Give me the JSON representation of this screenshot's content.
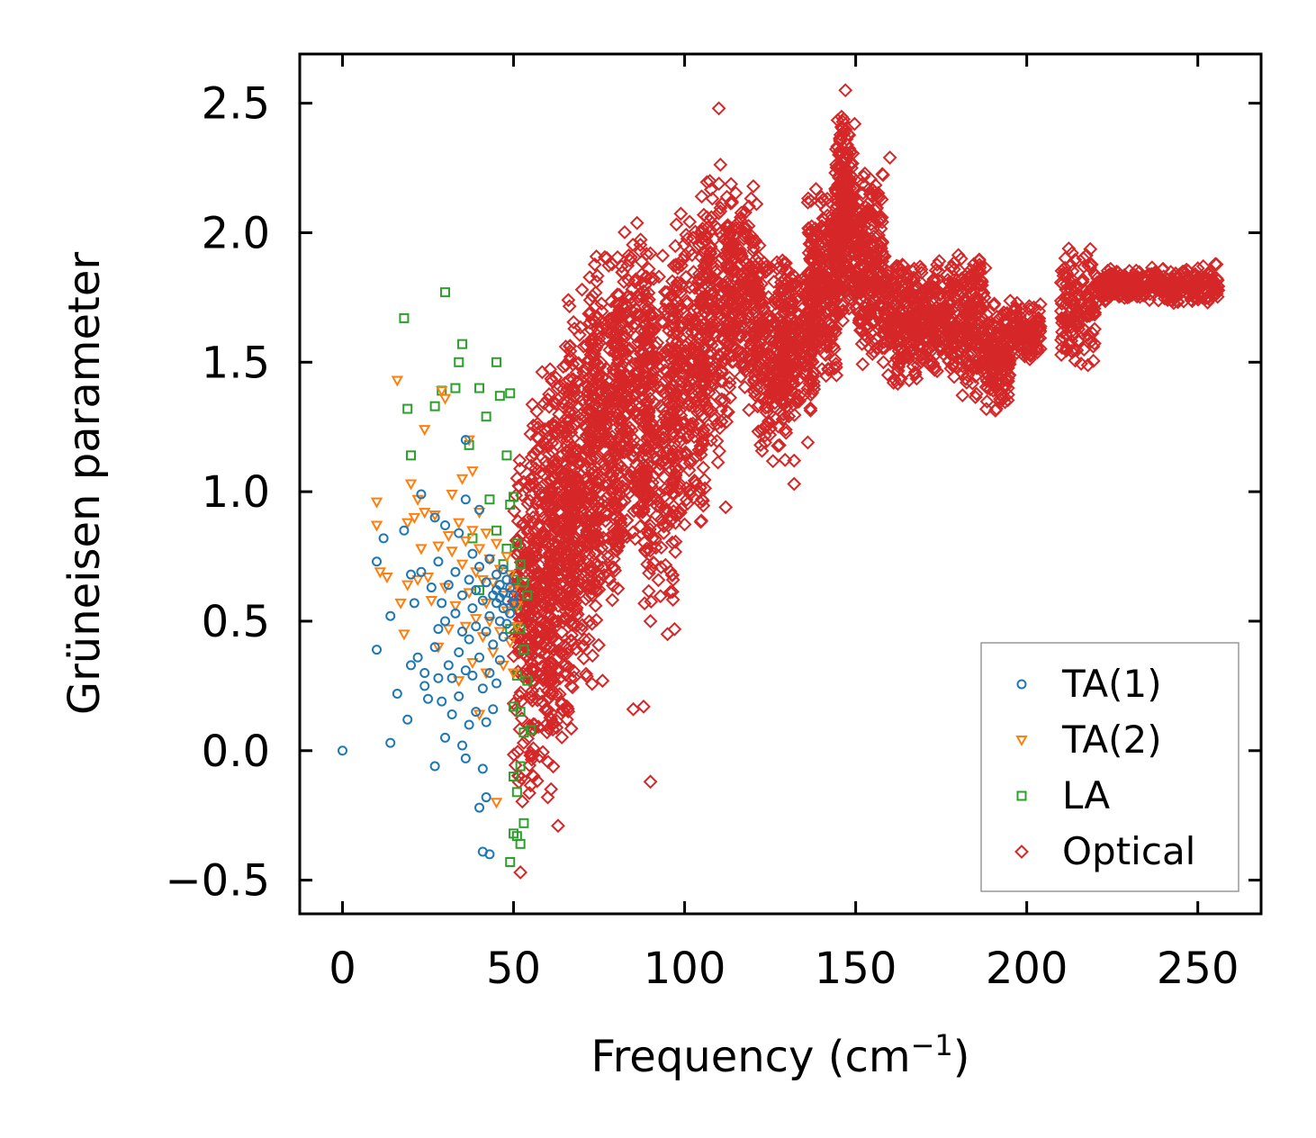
{
  "chart_data": {
    "type": "scatter",
    "title": "",
    "xlabel": "Frequency (cm",
    "xlabel_sup": "−1",
    "xlabel_suffix": ")",
    "ylabel": "Grüneisen parameter",
    "xlim": [
      -12.5,
      268.5
    ],
    "ylim": [
      -0.63,
      2.69
    ],
    "xticks": [
      0,
      50,
      100,
      150,
      200,
      250
    ],
    "xtick_labels": [
      "0",
      "50",
      "100",
      "150",
      "200",
      "250"
    ],
    "yticks": [
      -0.5,
      0.0,
      0.5,
      1.0,
      1.5,
      2.0,
      2.5
    ],
    "ytick_labels": [
      "−0.5",
      "0.0",
      "0.5",
      "1.0",
      "1.5",
      "2.0",
      "2.5"
    ],
    "legend_position": "lower-right",
    "series": [
      {
        "name": "TA(1)",
        "marker": "circle",
        "color": "#1f77b4",
        "points": [
          [
            0,
            0
          ],
          [
            10,
            0.73
          ],
          [
            10,
            0.39
          ],
          [
            12,
            0.82
          ],
          [
            14,
            0.52
          ],
          [
            14,
            0.03
          ],
          [
            16,
            0.22
          ],
          [
            18,
            0.85
          ],
          [
            19,
            0.12
          ],
          [
            20,
            0.68
          ],
          [
            20,
            0.33
          ],
          [
            21,
            0.57
          ],
          [
            22,
            0.36
          ],
          [
            23,
            0.99
          ],
          [
            23,
            0.69
          ],
          [
            24,
            0.3
          ],
          [
            24,
            0.25
          ],
          [
            25,
            0.2
          ],
          [
            26,
            0.63
          ],
          [
            27,
            0.9
          ],
          [
            27,
            0.4
          ],
          [
            27,
            -0.06
          ],
          [
            28,
            0.47
          ],
          [
            28,
            0.28
          ],
          [
            28,
            0.73
          ],
          [
            29,
            0.57
          ],
          [
            29,
            0.19
          ],
          [
            30,
            0.5
          ],
          [
            30,
            0.87
          ],
          [
            30,
            0.05
          ],
          [
            31,
            0.33
          ],
          [
            31,
            0.64
          ],
          [
            32,
            0.28
          ],
          [
            32,
            0.14
          ],
          [
            33,
            0.69
          ],
          [
            33,
            0.53
          ],
          [
            34,
            0.38
          ],
          [
            34,
            0.21
          ],
          [
            34,
            0.84
          ],
          [
            35,
            0.02
          ],
          [
            35,
            0.46
          ],
          [
            35,
            0.6
          ],
          [
            36,
            1.2
          ],
          [
            36,
            0.97
          ],
          [
            36,
            0.31
          ],
          [
            36,
            -0.03
          ],
          [
            37,
            0.66
          ],
          [
            37,
            0.43
          ],
          [
            37,
            0.1
          ],
          [
            38,
            0.76
          ],
          [
            38,
            0.55
          ],
          [
            38,
            0.29
          ],
          [
            39,
            0.15
          ],
          [
            39,
            0.48
          ],
          [
            39,
            0.62
          ],
          [
            40,
            0.93
          ],
          [
            40,
            0.71
          ],
          [
            40,
            0.36
          ],
          [
            40,
            -0.22
          ],
          [
            41,
            0.58
          ],
          [
            41,
            0.24
          ],
          [
            41,
            -0.07
          ],
          [
            41,
            -0.39
          ],
          [
            42,
            0.65
          ],
          [
            42,
            0.46
          ],
          [
            42,
            0.11
          ],
          [
            42,
            -0.18
          ],
          [
            43,
            0.74
          ],
          [
            43,
            0.52
          ],
          [
            43,
            0.3
          ],
          [
            43,
            -0.4
          ],
          [
            44,
            0.6
          ],
          [
            44,
            0.41
          ],
          [
            44,
            0.16
          ],
          [
            45,
            0.68
          ],
          [
            45,
            0.57
          ],
          [
            45,
            0.62
          ],
          [
            45,
            0.26
          ],
          [
            46,
            0.64
          ],
          [
            46,
            0.59
          ],
          [
            46,
            0.5
          ],
          [
            46,
            0.35
          ],
          [
            47,
            0.7
          ],
          [
            47,
            0.61
          ],
          [
            47,
            0.55
          ],
          [
            47,
            0.44
          ],
          [
            48,
            0.66
          ],
          [
            48,
            0.58
          ],
          [
            48,
            0.49
          ],
          [
            49,
            0.63
          ],
          [
            49,
            0.53
          ],
          [
            50,
            0.6
          ],
          [
            50,
            0.57
          ]
        ]
      },
      {
        "name": "TA(2)",
        "marker": "triangle-down",
        "color": "#ff7f0e",
        "points": [
          [
            10,
            0.96
          ],
          [
            10,
            0.87
          ],
          [
            11,
            0.69
          ],
          [
            13,
            0.67
          ],
          [
            16,
            1.43
          ],
          [
            17,
            0.57
          ],
          [
            18,
            0.45
          ],
          [
            19,
            0.88
          ],
          [
            19,
            0.64
          ],
          [
            20,
            1.03
          ],
          [
            21,
            0.9
          ],
          [
            22,
            0.97
          ],
          [
            22,
            0.66
          ],
          [
            23,
            0.78
          ],
          [
            24,
            1.24
          ],
          [
            24,
            0.92
          ],
          [
            25,
            0.67
          ],
          [
            26,
            0.58
          ],
          [
            27,
            0.91
          ],
          [
            28,
            0.79
          ],
          [
            28,
            0.4
          ],
          [
            29,
            1.39
          ],
          [
            30,
            1.36
          ],
          [
            30,
            0.63
          ],
          [
            31,
            0.83
          ],
          [
            31,
            0.47
          ],
          [
            32,
            0.99
          ],
          [
            32,
            0.77
          ],
          [
            33,
            0.56
          ],
          [
            34,
            0.88
          ],
          [
            34,
            0.27
          ],
          [
            35,
            1.05
          ],
          [
            35,
            0.72
          ],
          [
            36,
            0.81
          ],
          [
            36,
            0.48
          ],
          [
            37,
            1.2
          ],
          [
            37,
            0.61
          ],
          [
            38,
            1.08
          ],
          [
            38,
            0.85
          ],
          [
            38,
            0.34
          ],
          [
            39,
            0.69
          ],
          [
            39,
            0.51
          ],
          [
            40,
            0.92
          ],
          [
            40,
            0.78
          ],
          [
            40,
            0.14
          ],
          [
            41,
            0.66
          ],
          [
            41,
            0.44
          ],
          [
            42,
            0.84
          ],
          [
            42,
            0.57
          ],
          [
            42,
            0.3
          ],
          [
            43,
            0.74
          ],
          [
            43,
            0.5
          ],
          [
            44,
            0.65
          ],
          [
            44,
            0.38
          ],
          [
            45,
            0.8
          ],
          [
            45,
            -0.2
          ],
          [
            46,
            0.7
          ],
          [
            46,
            0.46
          ],
          [
            47,
            0.6
          ],
          [
            47,
            0.33
          ],
          [
            48,
            0.75
          ],
          [
            48,
            0.54
          ],
          [
            49,
            0.68
          ],
          [
            49,
            0.42
          ],
          [
            50,
            0.62
          ],
          [
            50,
            0.3
          ],
          [
            51,
            0.56
          ],
          [
            51,
            0.48
          ]
        ]
      },
      {
        "name": "LA",
        "marker": "square",
        "color": "#2ca02c",
        "points": [
          [
            18,
            1.67
          ],
          [
            19,
            1.32
          ],
          [
            20,
            1.14
          ],
          [
            27,
            1.33
          ],
          [
            29,
            1.39
          ],
          [
            30,
            1.77
          ],
          [
            33,
            1.4
          ],
          [
            34,
            1.5
          ],
          [
            35,
            1.57
          ],
          [
            37,
            1.18
          ],
          [
            38,
            0.82
          ],
          [
            40,
            1.4
          ],
          [
            40,
            0.62
          ],
          [
            42,
            1.29
          ],
          [
            43,
            0.97
          ],
          [
            45,
            1.5
          ],
          [
            45,
            0.85
          ],
          [
            46,
            1.37
          ],
          [
            47,
            0.72
          ],
          [
            48,
            1.14
          ],
          [
            48,
            0.78
          ],
          [
            49,
            1.38
          ],
          [
            49,
            0.95
          ],
          [
            49,
            0.47
          ],
          [
            50,
            0.98
          ],
          [
            50,
            0.66
          ],
          [
            50,
            0.17
          ],
          [
            50,
            -0.1
          ],
          [
            51,
            0.8
          ],
          [
            51,
            0.56
          ],
          [
            51,
            0.29
          ],
          [
            51,
            -0.33
          ],
          [
            52,
            0.72
          ],
          [
            52,
            0.47
          ],
          [
            52,
            0.15
          ],
          [
            52,
            -0.36
          ],
          [
            53,
            0.65
          ],
          [
            53,
            0.39
          ],
          [
            53,
            0.07
          ],
          [
            53,
            -0.28
          ],
          [
            54,
            0.6
          ],
          [
            54,
            0.27
          ],
          [
            55,
            0.08
          ],
          [
            49,
            -0.43
          ],
          [
            50,
            -0.32
          ],
          [
            51,
            -0.16
          ],
          [
            52,
            -0.06
          ]
        ]
      },
      {
        "name": "Optical",
        "marker": "diamond",
        "color": "#d62728",
        "clusters": [
          {
            "x": [
              50,
              56
            ],
            "y": [
              -0.3,
              1.4
            ],
            "n": 150
          },
          {
            "x": [
              55,
              62
            ],
            "y": [
              -0.2,
              1.5
            ],
            "n": 250
          },
          {
            "x": [
              60,
              68
            ],
            "y": [
              0.0,
              1.6
            ],
            "n": 280
          },
          {
            "x": [
              65,
              75
            ],
            "y": [
              0.2,
              1.75
            ],
            "n": 300
          },
          {
            "x": [
              72,
              82
            ],
            "y": [
              0.5,
              2.0
            ],
            "n": 300
          },
          {
            "x": [
              80,
              90
            ],
            "y": [
              0.7,
              2.1
            ],
            "n": 280
          },
          {
            "x": [
              88,
              98
            ],
            "y": [
              0.4,
              2.0
            ],
            "n": 260
          },
          {
            "x": [
              96,
              106
            ],
            "y": [
              0.8,
              2.1
            ],
            "n": 240
          },
          {
            "x": [
              104,
              114
            ],
            "y": [
              1.1,
              2.3
            ],
            "n": 240
          },
          {
            "x": [
              112,
              122
            ],
            "y": [
              1.3,
              2.2
            ],
            "n": 220
          },
          {
            "x": [
              120,
              130
            ],
            "y": [
              1.1,
              1.95
            ],
            "n": 220
          },
          {
            "x": [
              128,
              138
            ],
            "y": [
              1.25,
              1.9
            ],
            "n": 220
          },
          {
            "x": [
              136,
              145
            ],
            "y": [
              1.4,
              2.2
            ],
            "n": 260
          },
          {
            "x": [
              144,
              150
            ],
            "y": [
              1.6,
              2.5
            ],
            "n": 260
          },
          {
            "x": [
              150,
              158
            ],
            "y": [
              1.45,
              2.3
            ],
            "n": 240
          },
          {
            "x": [
              158,
              168
            ],
            "y": [
              1.4,
              1.95
            ],
            "n": 220
          },
          {
            "x": [
              168,
              178
            ],
            "y": [
              1.45,
              1.9
            ],
            "n": 200
          },
          {
            "x": [
              178,
              188
            ],
            "y": [
              1.35,
              1.95
            ],
            "n": 200
          },
          {
            "x": [
              188,
              195
            ],
            "y": [
              1.3,
              1.75
            ],
            "n": 160
          },
          {
            "x": [
              195,
              204
            ],
            "y": [
              1.5,
              1.75
            ],
            "n": 120
          },
          {
            "x": [
              210,
              220
            ],
            "y": [
              1.45,
              1.95
            ],
            "n": 140
          },
          {
            "x": [
              220,
              235
            ],
            "y": [
              1.72,
              1.87
            ],
            "n": 180
          },
          {
            "x": [
              235,
              256
            ],
            "y": [
              1.72,
              1.88
            ],
            "n": 220
          }
        ],
        "outliers": [
          [
            66,
            1.74
          ],
          [
            70,
            1.78
          ],
          [
            90,
            -0.12
          ],
          [
            90,
            0.5
          ],
          [
            95,
            0.45
          ],
          [
            112,
            0.94
          ],
          [
            132,
            1.12
          ],
          [
            132,
            1.03
          ],
          [
            147,
            2.55
          ],
          [
            160,
            2.29
          ],
          [
            110,
            2.48
          ],
          [
            136,
            1.19
          ],
          [
            105,
            2.14
          ],
          [
            60,
            -0.18
          ],
          [
            63,
            -0.29
          ],
          [
            52,
            -0.47
          ],
          [
            85,
            0.16
          ],
          [
            88,
            0.17
          ],
          [
            76,
            0.27
          ],
          [
            72,
            0.43
          ]
        ]
      }
    ]
  }
}
